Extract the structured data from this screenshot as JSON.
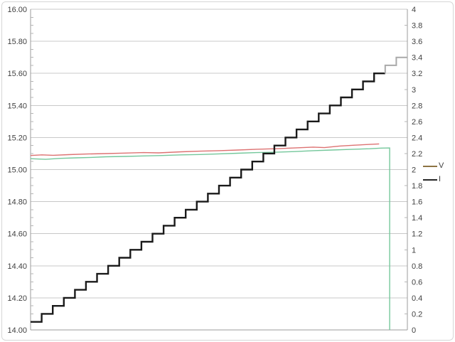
{
  "chart_data": {
    "type": "line",
    "title": "",
    "xlabel": "",
    "x_axis": {
      "tick_labels": [],
      "note": "no x-axis labels visible"
    },
    "y_axis_left": {
      "min": 14.0,
      "max": 16.0,
      "major_step": 0.2,
      "minor_tick_step": 0.05,
      "tick_labels": [
        "16.00",
        "15.80",
        "15.60",
        "15.40",
        "15.20",
        "15.00",
        "14.80",
        "14.60",
        "14.40",
        "14.20",
        "14.00"
      ]
    },
    "y_axis_right": {
      "min": 0,
      "max": 4,
      "label_step": 0.2,
      "gridline_step": 0.4,
      "tick_labels": [
        "4",
        "3.8",
        "3.6",
        "3.4",
        "3.2",
        "3",
        "2.8",
        "2.6",
        "2.4",
        "2.2",
        "2",
        "1.8",
        "1.6",
        "1.4",
        "1.2",
        "1",
        "0.8",
        "0.6",
        "0.4",
        "0.2",
        "0"
      ]
    },
    "grid": true,
    "legend": {
      "position": "right",
      "items": [
        {
          "label": "V",
          "color": "#8d7343"
        },
        {
          "label": "I",
          "color": "#262626"
        }
      ]
    },
    "colors": {
      "gridline": "#c8c8c8",
      "axis_line": "#9b9b9b",
      "minor_tick": "#b5b5b5",
      "tick_label_text": "#3f3f3f",
      "v_red": "#dd7272",
      "v_green": "#74c79b",
      "i_black": "#1a1a1a",
      "i_gray_tail": "#a9a9a9"
    },
    "series": [
      {
        "id": "v-red",
        "legend": "V",
        "axis": "left",
        "color": "#dd7272",
        "points": [
          [
            0.0,
            15.088
          ],
          [
            0.03,
            15.092
          ],
          [
            0.06,
            15.089
          ],
          [
            0.1,
            15.093
          ],
          [
            0.15,
            15.097
          ],
          [
            0.2,
            15.1
          ],
          [
            0.25,
            15.103
          ],
          [
            0.3,
            15.106
          ],
          [
            0.34,
            15.104
          ],
          [
            0.4,
            15.111
          ],
          [
            0.45,
            15.115
          ],
          [
            0.5,
            15.118
          ],
          [
            0.55,
            15.122
          ],
          [
            0.6,
            15.127
          ],
          [
            0.65,
            15.13
          ],
          [
            0.7,
            15.135
          ],
          [
            0.75,
            15.14
          ],
          [
            0.78,
            15.137
          ],
          [
            0.82,
            15.147
          ],
          [
            0.86,
            15.152
          ],
          [
            0.9,
            15.157
          ],
          [
            0.925,
            15.16
          ]
        ]
      },
      {
        "id": "v-green",
        "legend": "V",
        "axis": "left",
        "color": "#74c79b",
        "drop_to_min_at_end": true,
        "points": [
          [
            0.0,
            15.068
          ],
          [
            0.04,
            15.064
          ],
          [
            0.08,
            15.07
          ],
          [
            0.12,
            15.073
          ],
          [
            0.16,
            15.076
          ],
          [
            0.2,
            15.08
          ],
          [
            0.25,
            15.082
          ],
          [
            0.3,
            15.085
          ],
          [
            0.35,
            15.088
          ],
          [
            0.4,
            15.092
          ],
          [
            0.45,
            15.094
          ],
          [
            0.5,
            15.098
          ],
          [
            0.55,
            15.102
          ],
          [
            0.6,
            15.106
          ],
          [
            0.65,
            15.108
          ],
          [
            0.7,
            15.112
          ],
          [
            0.75,
            15.118
          ],
          [
            0.8,
            15.122
          ],
          [
            0.85,
            15.126
          ],
          [
            0.9,
            15.13
          ],
          [
            0.93,
            15.134
          ],
          [
            0.953,
            15.135
          ]
        ]
      },
      {
        "id": "i-steps",
        "legend": "I",
        "axis": "right",
        "color": "#1a1a1a",
        "tail_color": "#a9a9a9",
        "gray_from_value": 3.3,
        "step_values": [
          0.1,
          0.2,
          0.3,
          0.4,
          0.5,
          0.6,
          0.7,
          0.8,
          0.9,
          1.0,
          1.1,
          1.2,
          1.3,
          1.4,
          1.5,
          1.6,
          1.7,
          1.8,
          1.9,
          2.0,
          2.1,
          2.2,
          2.3,
          2.4,
          2.5,
          2.6,
          2.7,
          2.8,
          2.9,
          3.0,
          3.1,
          3.2,
          3.3,
          3.4
        ]
      }
    ]
  }
}
